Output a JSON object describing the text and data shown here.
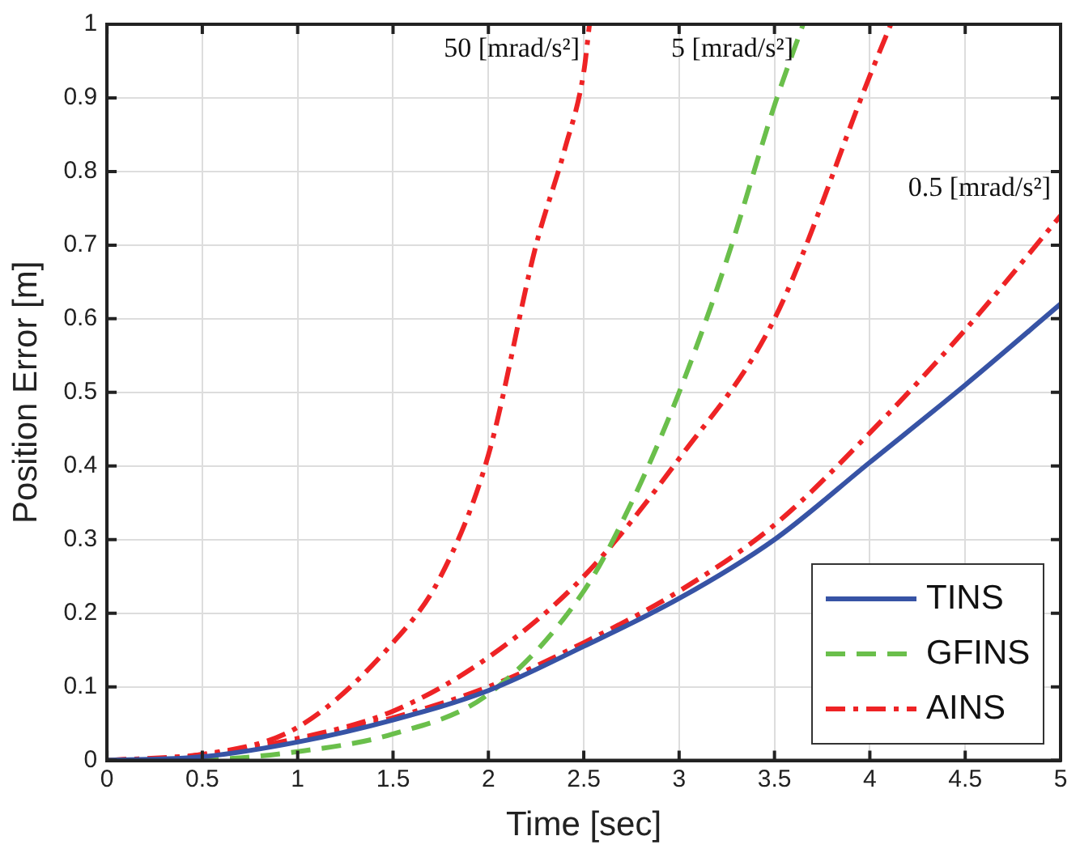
{
  "chart_data": {
    "type": "line",
    "xlabel": "Time [sec]",
    "ylabel": "Position Error [m]",
    "xlim": [
      0,
      5
    ],
    "xticks": [
      0,
      0.5,
      1,
      1.5,
      2,
      2.5,
      3,
      3.5,
      4,
      4.5,
      5
    ],
    "ylim": [
      0,
      1
    ],
    "yticks": [
      0,
      0.1,
      0.2,
      0.3,
      0.4,
      0.5,
      0.6,
      0.7,
      0.8,
      0.9,
      1
    ],
    "grid": true,
    "legend": "bottom right",
    "marker": "none",
    "series": [
      {
        "name": "TINS",
        "color": "#3753a5",
        "line_style": "solid",
        "x": [
          0,
          0.5,
          1,
          1.5,
          2,
          2.5,
          3,
          3.5,
          4,
          4.5,
          5
        ],
        "values": [
          0,
          0.005,
          0.025,
          0.055,
          0.095,
          0.155,
          0.22,
          0.3,
          0.405,
          0.51,
          0.62
        ]
      },
      {
        "name": "GFINS",
        "color": "#6abf4b",
        "line_style": "dashed",
        "x": [
          0,
          0.5,
          1,
          1.5,
          2,
          2.5,
          2.75,
          3,
          3.25,
          3.5,
          3.65
        ],
        "values": [
          0,
          0.001,
          0.012,
          0.036,
          0.09,
          0.23,
          0.35,
          0.5,
          0.68,
          0.89,
          1
        ]
      },
      {
        "name": "AINS",
        "color": "#ee2325",
        "line_style": "dashdot",
        "x": [
          0,
          0.5,
          1,
          1.5,
          2,
          2.5,
          3,
          3.5,
          4,
          4.5,
          5
        ],
        "values": [
          0,
          0.006,
          0.027,
          0.058,
          0.1,
          0.16,
          0.23,
          0.32,
          0.445,
          0.585,
          0.74
        ]
      },
      {
        "color": "#ee2325",
        "line_style": "dashdot",
        "x": [
          0,
          0.5,
          1,
          1.5,
          2,
          2.5,
          3,
          3.5,
          4,
          4.11
        ],
        "values": [
          0,
          0.008,
          0.03,
          0.067,
          0.14,
          0.25,
          0.41,
          0.6,
          0.93,
          1
        ]
      },
      {
        "color": "#ee2325",
        "line_style": "dashdot",
        "x": [
          0,
          0.5,
          1,
          1.5,
          1.75,
          2,
          2.25,
          2.4,
          2.5,
          2.53
        ],
        "values": [
          0,
          0.008,
          0.045,
          0.16,
          0.25,
          0.415,
          0.7,
          0.83,
          0.935,
          1
        ]
      }
    ],
    "annotations": [
      {
        "text": "50 [mrad/s²]",
        "x": 2.53,
        "y": 1
      },
      {
        "text": "5 [mrad/s²]",
        "x": 3.65,
        "y": 1
      },
      {
        "text": "0.5 [mrad/s²]",
        "x": 5,
        "y": 0.74
      }
    ]
  }
}
